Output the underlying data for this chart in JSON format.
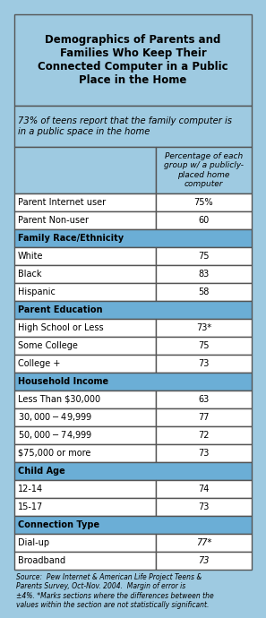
{
  "title": "Demographics of Parents and\nFamilies Who Keep Their\nConnected Computer in a Public\nPlace in the Home",
  "subtitle": "73% of teens report that the family computer is\nin a public space in the home",
  "col_header": "Percentage of each\ngroup w/ a publicly-\nplaced home\ncomputer",
  "rows": [
    {
      "label": "Parent Internet user",
      "value": "75%",
      "is_header": false,
      "italic_value": false
    },
    {
      "label": "Parent Non-user",
      "value": "60",
      "is_header": false,
      "italic_value": false
    },
    {
      "label": "Family Race/Ethnicity",
      "value": "",
      "is_header": true,
      "italic_value": false
    },
    {
      "label": "White",
      "value": "75",
      "is_header": false,
      "italic_value": false
    },
    {
      "label": "Black",
      "value": "83",
      "is_header": false,
      "italic_value": false
    },
    {
      "label": "Hispanic",
      "value": "58",
      "is_header": false,
      "italic_value": false
    },
    {
      "label": "Parent Education",
      "value": "",
      "is_header": true,
      "italic_value": false
    },
    {
      "label": "High School or Less",
      "value": "73*",
      "is_header": false,
      "italic_value": false
    },
    {
      "label": "Some College",
      "value": "75",
      "is_header": false,
      "italic_value": false
    },
    {
      "label": "College +",
      "value": "73",
      "is_header": false,
      "italic_value": false
    },
    {
      "label": "Household Income",
      "value": "",
      "is_header": true,
      "italic_value": false
    },
    {
      "label": "Less Than $30,000",
      "value": "63",
      "is_header": false,
      "italic_value": false
    },
    {
      "label": "$30,000-$49,999",
      "value": "77",
      "is_header": false,
      "italic_value": false
    },
    {
      "label": "$50,000-$74,999",
      "value": "72",
      "is_header": false,
      "italic_value": false
    },
    {
      "label": "$75,000 or more",
      "value": "73",
      "is_header": false,
      "italic_value": false
    },
    {
      "label": "Child Age",
      "value": "",
      "is_header": true,
      "italic_value": false
    },
    {
      "label": "12-14",
      "value": "74",
      "is_header": false,
      "italic_value": false
    },
    {
      "label": "15-17",
      "value": "73",
      "is_header": false,
      "italic_value": false
    },
    {
      "label": "Connection Type",
      "value": "",
      "is_header": true,
      "italic_value": false
    },
    {
      "label": "Dial-up",
      "value": "77*",
      "is_header": false,
      "italic_value": true
    },
    {
      "label": "Broadband",
      "value": "73",
      "is_header": false,
      "italic_value": true
    }
  ],
  "footer": "Source:  Pew Internet & American Life Project Teens &\nParents Survey, Oct-Nov. 2004.  Margin of error is\n±4%. *Marks sections where the differences between the\nvalues within the section are not statistically significant.",
  "section_bg": "#6baed6",
  "row_bg": "#ffffff",
  "outer_bg": "#9ecae1",
  "border_color": "#555555",
  "title_bg": "#9ecae1"
}
